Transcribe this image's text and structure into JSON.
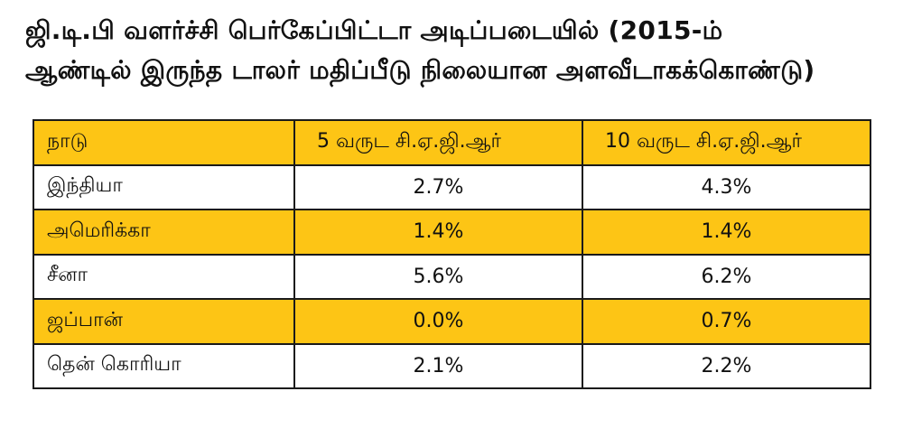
{
  "title_line1": "ஜி.டி.பி வளர்ச்சி பெர்கேப்பிட்டா அடிப்படையில் (2015-ம்",
  "title_line2": "ஆண்டில் இருந்த டாலர் மதிப்பீடு நிலையான அளவீடாகக்கொண்டு)",
  "colors": {
    "highlight": "#fdc515",
    "border": "#1a1a1a",
    "text": "#111111"
  },
  "chart_data": {
    "type": "table",
    "title": "ஜி.டி.பி வளர்ச்சி பெர்கேப்பிட்டா அடிப்படையில் (2015-ம் ஆண்டில் இருந்த டாலர் மதிப்பீடு நிலையான அளவீடாகக்கொண்டு)",
    "columns": [
      "நாடு",
      "5 வருட சி.ஏ.ஜி.ஆர்",
      "10 வருட சி.ஏ.ஜி.ஆர்"
    ],
    "rows": [
      {
        "country": "இந்தியா",
        "cagr5": "2.7%",
        "cagr10": "4.3%",
        "highlight": false
      },
      {
        "country": "அமெரிக்கா",
        "cagr5": "1.4%",
        "cagr10": "1.4%",
        "highlight": true
      },
      {
        "country": "சீனா",
        "cagr5": "5.6%",
        "cagr10": "6.2%",
        "highlight": false
      },
      {
        "country": "ஜப்பான்",
        "cagr5": "0.0%",
        "cagr10": "0.7%",
        "highlight": true
      },
      {
        "country": "தென் கொரியா",
        "cagr5": "2.1%",
        "cagr10": "2.2%",
        "highlight": false
      }
    ]
  }
}
